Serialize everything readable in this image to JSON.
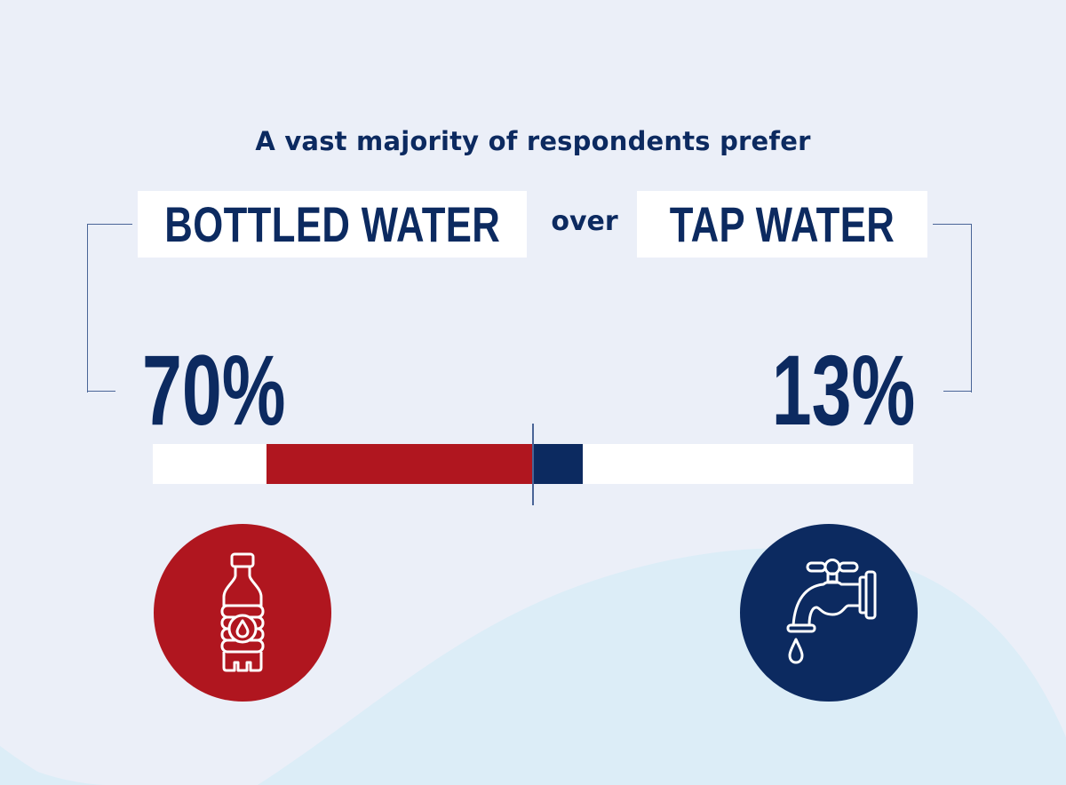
{
  "headline": "A vast majority of respondents prefer",
  "labels": {
    "bottled": "BOTTLED WATER",
    "connector": "over",
    "tap": "TAP WATER"
  },
  "values": {
    "bottled": "70%",
    "tap": "13%"
  },
  "colors": {
    "background": "#EBEFF8",
    "wave": "#DCEDF7",
    "bottled": "#B0161F",
    "tap": "#0C2A60",
    "text": "#0C2A60",
    "bracket": "#4A6597",
    "track": "#FFFFFF"
  },
  "icons": {
    "bottled": "water-bottle-icon",
    "tap": "faucet-icon"
  },
  "chart_data": {
    "type": "bar",
    "orientation": "diverging-horizontal",
    "title": "A vast majority of respondents prefer BOTTLED WATER over TAP WATER",
    "categories": [
      "Bottled water",
      "Tap water"
    ],
    "values": [
      70,
      13
    ],
    "unit": "%",
    "series": [
      {
        "name": "Bottled water",
        "values": [
          70
        ],
        "color": "#B0161F",
        "direction": "left"
      },
      {
        "name": "Tap water",
        "values": [
          13
        ],
        "color": "#0C2A60",
        "direction": "right"
      }
    ],
    "center_line": true,
    "scale_each_side": 100,
    "xlabel": "",
    "ylabel": "",
    "grid": false,
    "legend": "none (labels above bar)"
  }
}
